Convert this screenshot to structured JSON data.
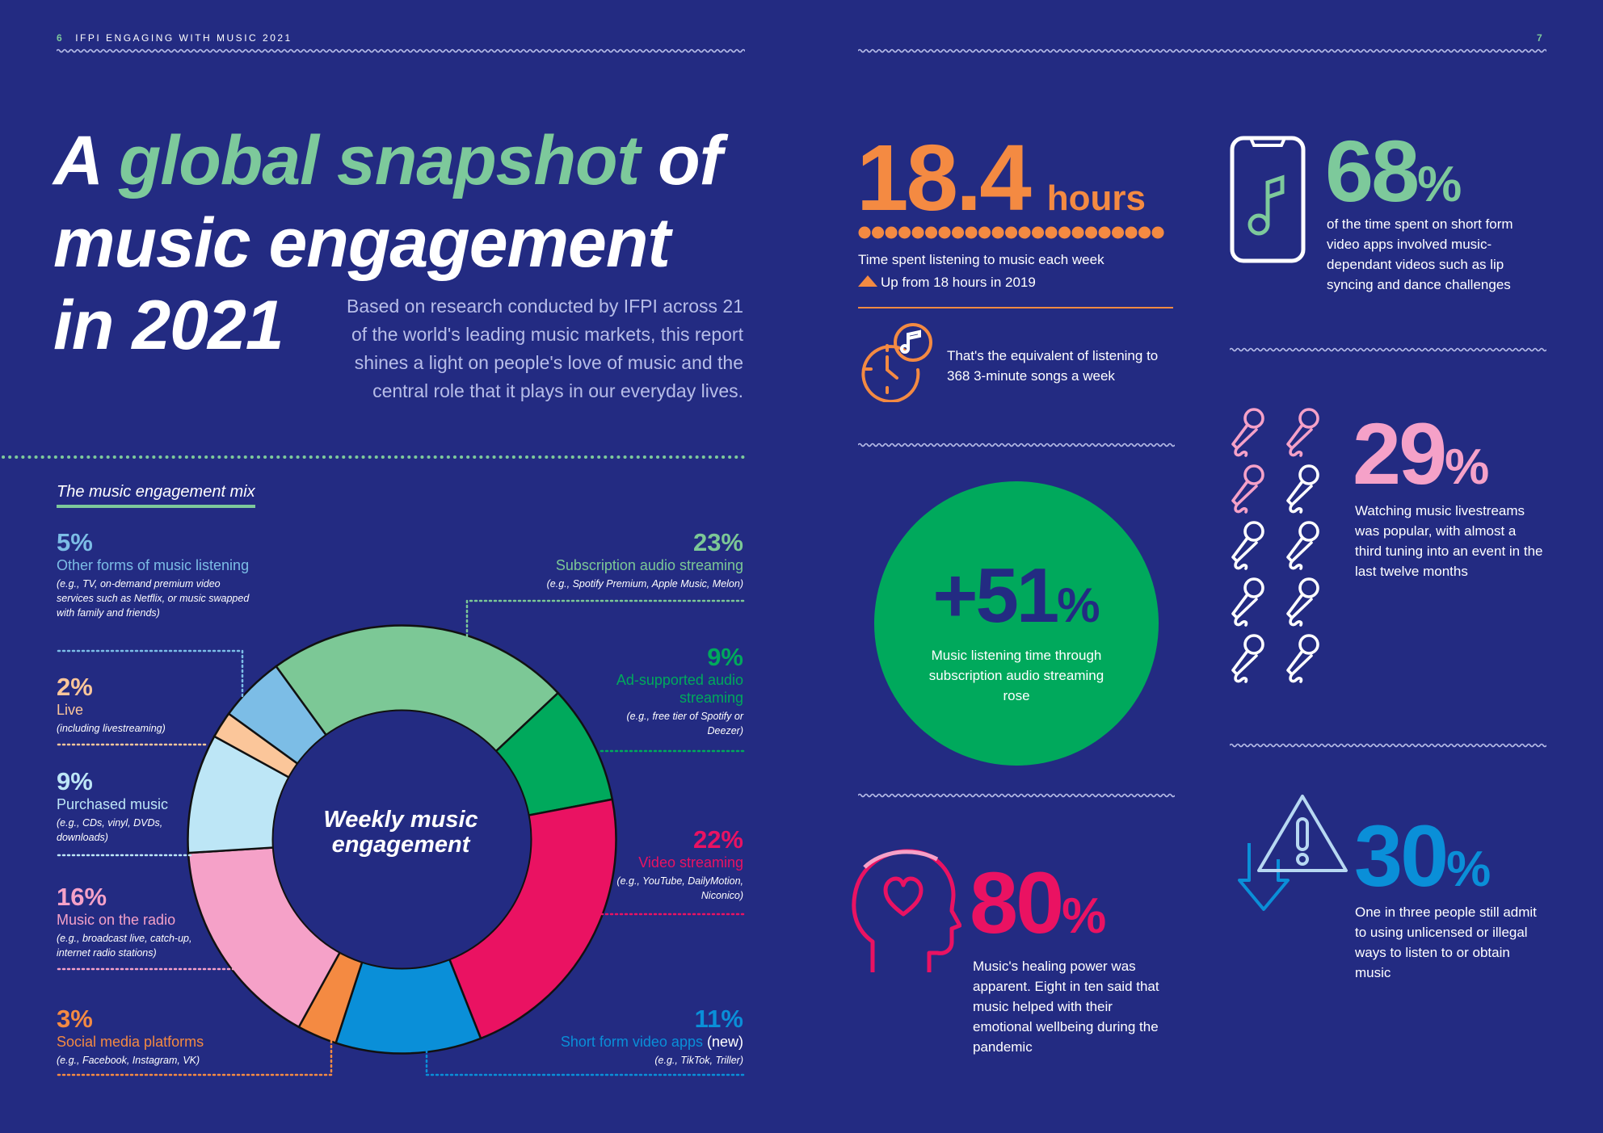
{
  "header": {
    "left_page_number": "6",
    "left_title": "IFPI ENGAGING WITH MUSIC 2021",
    "right_page_number": "7"
  },
  "title": {
    "part1": "A ",
    "highlight": "global snapshot",
    "part2": " of",
    "line2": "music engagement",
    "line3": "in 2021"
  },
  "intro": "Based on research conducted by IFPI across 21 of the world's leading music markets, this report shines a light on people's love of music and the central role that it plays in our everyday lives.",
  "mix": {
    "heading": "The music engagement mix",
    "center_line1": "Weekly music",
    "center_line2": "engagement",
    "items": [
      {
        "pct": "5%",
        "label": "Other forms of music listening",
        "note": "(e.g., TV, on-demand premium video services such as Netflix, or music swapped with family and friends)",
        "color": "#7cbde6"
      },
      {
        "pct": "2%",
        "label": "Live",
        "note": "(including livestreaming)",
        "color": "#fbc69a"
      },
      {
        "pct": "9%",
        "label": "Purchased music",
        "note": "(e.g., CDs, vinyl, DVDs, downloads)",
        "color": "#bde6f6"
      },
      {
        "pct": "16%",
        "label": "Music on the radio",
        "note": "(e.g., broadcast live, catch-up, internet radio stations)",
        "color": "#f5a1c8"
      },
      {
        "pct": "3%",
        "label": "Social media platforms",
        "note": "(e.g., Facebook, Instagram, VK)",
        "color": "#f48a42"
      },
      {
        "pct": "23%",
        "label": "Subscription audio streaming",
        "note": "(e.g., Spotify Premium, Apple Music, Melon)",
        "color": "#7cc896"
      },
      {
        "pct": "9%",
        "label": "Ad-supported audio streaming",
        "note": "(e.g., free tier of Spotify or Deezer)",
        "color": "#00a95c"
      },
      {
        "pct": "22%",
        "label": "Video streaming",
        "note": "(e.g., YouTube, DailyMotion, Niconico)",
        "color": "#ea1262"
      },
      {
        "pct": "11%",
        "label": "Short form video apps",
        "label_suffix": "(new)",
        "note": "(e.g., TikTok, Triller)",
        "color": "#0a8fd8"
      }
    ]
  },
  "chart_data": {
    "type": "pie",
    "title": "Weekly music engagement",
    "categories": [
      "Subscription audio streaming",
      "Ad-supported audio streaming",
      "Video streaming",
      "Short form video apps",
      "Social media platforms",
      "Music on the radio",
      "Purchased music",
      "Live",
      "Other forms of music listening"
    ],
    "values": [
      23,
      9,
      22,
      11,
      3,
      16,
      9,
      2,
      5
    ],
    "colors": [
      "#7cc896",
      "#00a95c",
      "#ea1262",
      "#0a8fd8",
      "#f48a42",
      "#f5a1c8",
      "#bde6f6",
      "#fbc69a",
      "#7cbde6"
    ]
  },
  "hours": {
    "value": "18.4",
    "unit": "hours",
    "caption": "Time spent listening to music each week",
    "trend": "Up from 18 hours in 2019",
    "equivalent": "That's the equivalent of listening to 368 3-minute songs a week"
  },
  "growth": {
    "value": "+51",
    "unit": "%",
    "caption": "Music listening time through subscription audio streaming rose"
  },
  "healing": {
    "value": "80",
    "unit": "%",
    "caption": "Music's healing power was apparent. Eight in ten said that music helped with their emotional wellbeing during the pandemic"
  },
  "shortform": {
    "value": "68",
    "unit": "%",
    "caption": "of the time spent on short form video apps involved music-dependant videos such as lip syncing and dance challenges"
  },
  "livestream": {
    "value": "29",
    "unit": "%",
    "caption": "Watching music livestreams was popular, with almost a third tuning into an event in the last twelve months"
  },
  "unlicensed": {
    "value": "30",
    "unit": "%",
    "caption": "One in three people still admit to using unlicensed or illegal ways to listen to or obtain music"
  },
  "colors": {
    "background": "#232b82",
    "green": "#7dc99b",
    "orange": "#f48a42",
    "pink": "#ea1262",
    "light_pink": "#f5a1c8",
    "blue": "#0a8fd8",
    "circle_green": "#00a95c"
  }
}
